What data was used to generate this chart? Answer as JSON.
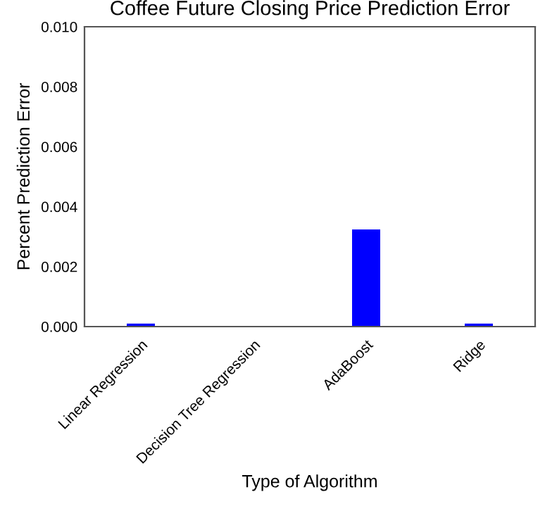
{
  "chart_data": {
    "type": "bar",
    "title": "Coffee Future Closing Price Prediction Error",
    "xlabel": "Type of Algorithm",
    "ylabel": "Percent Prediction Error",
    "categories": [
      "Linear Regression",
      "Decision Tree Regression",
      "AdaBoost",
      "Ridge"
    ],
    "values": [
      0.0001,
      0.0,
      0.00324,
      0.0001
    ],
    "color": "#0000ff",
    "ylim": [
      0,
      0.01
    ],
    "yticks": [
      {
        "value": 0,
        "label": "0.000"
      },
      {
        "value": 0.002,
        "label": "0.002"
      },
      {
        "value": 0.004,
        "label": "0.004"
      },
      {
        "value": 0.006,
        "label": "0.006"
      },
      {
        "value": 0.008,
        "label": "0.008"
      },
      {
        "value": 0.01,
        "label": "0.010"
      }
    ],
    "grid": false,
    "legend": false
  }
}
